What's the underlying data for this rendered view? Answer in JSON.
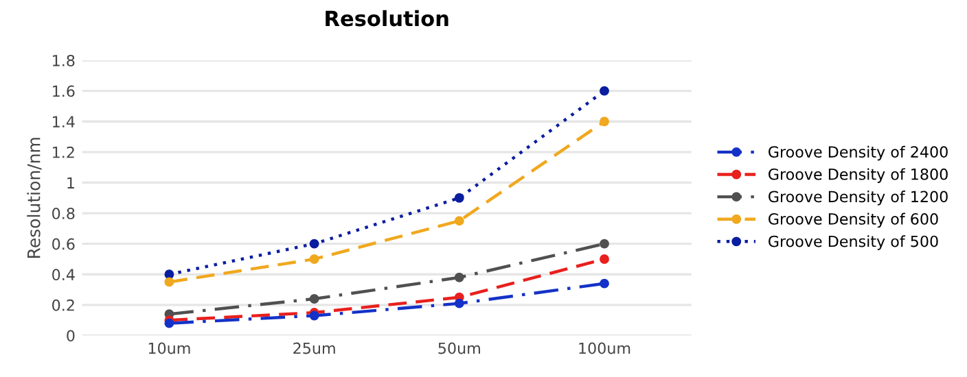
{
  "chart_data": {
    "type": "line",
    "title": "Resolution",
    "ylabel": "Resolution/nm",
    "categories": [
      "10um",
      "25um",
      "50um",
      "100um"
    ],
    "series": [
      {
        "name": "Groove Density of 2400",
        "color": "#1432c8",
        "values": [
          0.08,
          0.13,
          0.21,
          0.34
        ],
        "line_style": "dashdot"
      },
      {
        "name": "Groove Density of 1800",
        "color": "#e8201e",
        "values": [
          0.1,
          0.15,
          0.25,
          0.5
        ],
        "line_style": "dashed"
      },
      {
        "name": "Groove Density of 1200",
        "color": "#505050",
        "values": [
          0.14,
          0.24,
          0.38,
          0.6
        ],
        "line_style": "dashdot"
      },
      {
        "name": "Groove Density of 600",
        "color": "#f0a81e",
        "values": [
          0.35,
          0.5,
          0.75,
          1.4
        ],
        "line_style": "dashed"
      },
      {
        "name": "Groove Density of 500",
        "color": "#0a1ea0",
        "values": [
          0.4,
          0.6,
          0.9,
          1.6
        ],
        "line_style": "dotted"
      }
    ],
    "ylim": [
      0,
      1.8
    ],
    "yticks": [
      0,
      0.2,
      0.4,
      0.6,
      0.8,
      1,
      1.2,
      1.4,
      1.6,
      1.8
    ],
    "grid": "y",
    "legend": "right",
    "marker": "circle"
  }
}
